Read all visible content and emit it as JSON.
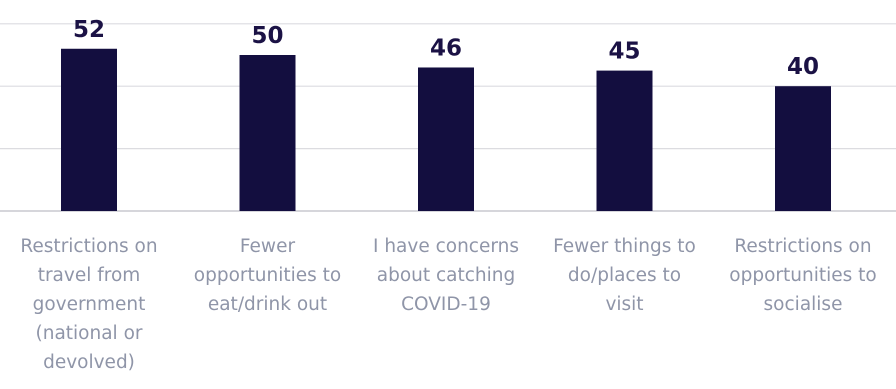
{
  "chart_data": {
    "type": "bar",
    "categories": [
      [
        "Restrictions on",
        "travel from",
        "government",
        "(national or",
        "devolved)"
      ],
      [
        "Fewer",
        "opportunities to",
        "eat/drink out"
      ],
      [
        "I have concerns",
        "about catching",
        "COVID-19"
      ],
      [
        "Fewer things to",
        "do/places to",
        "visit"
      ],
      [
        "Restrictions on",
        "opportunities to",
        "socialise"
      ]
    ],
    "values": [
      52,
      50,
      46,
      45,
      40
    ],
    "title": "",
    "xlabel": "",
    "ylabel": "",
    "ylim": [
      0,
      60
    ],
    "grid": true,
    "bar_color": "#130e3f",
    "data_labels": true
  }
}
